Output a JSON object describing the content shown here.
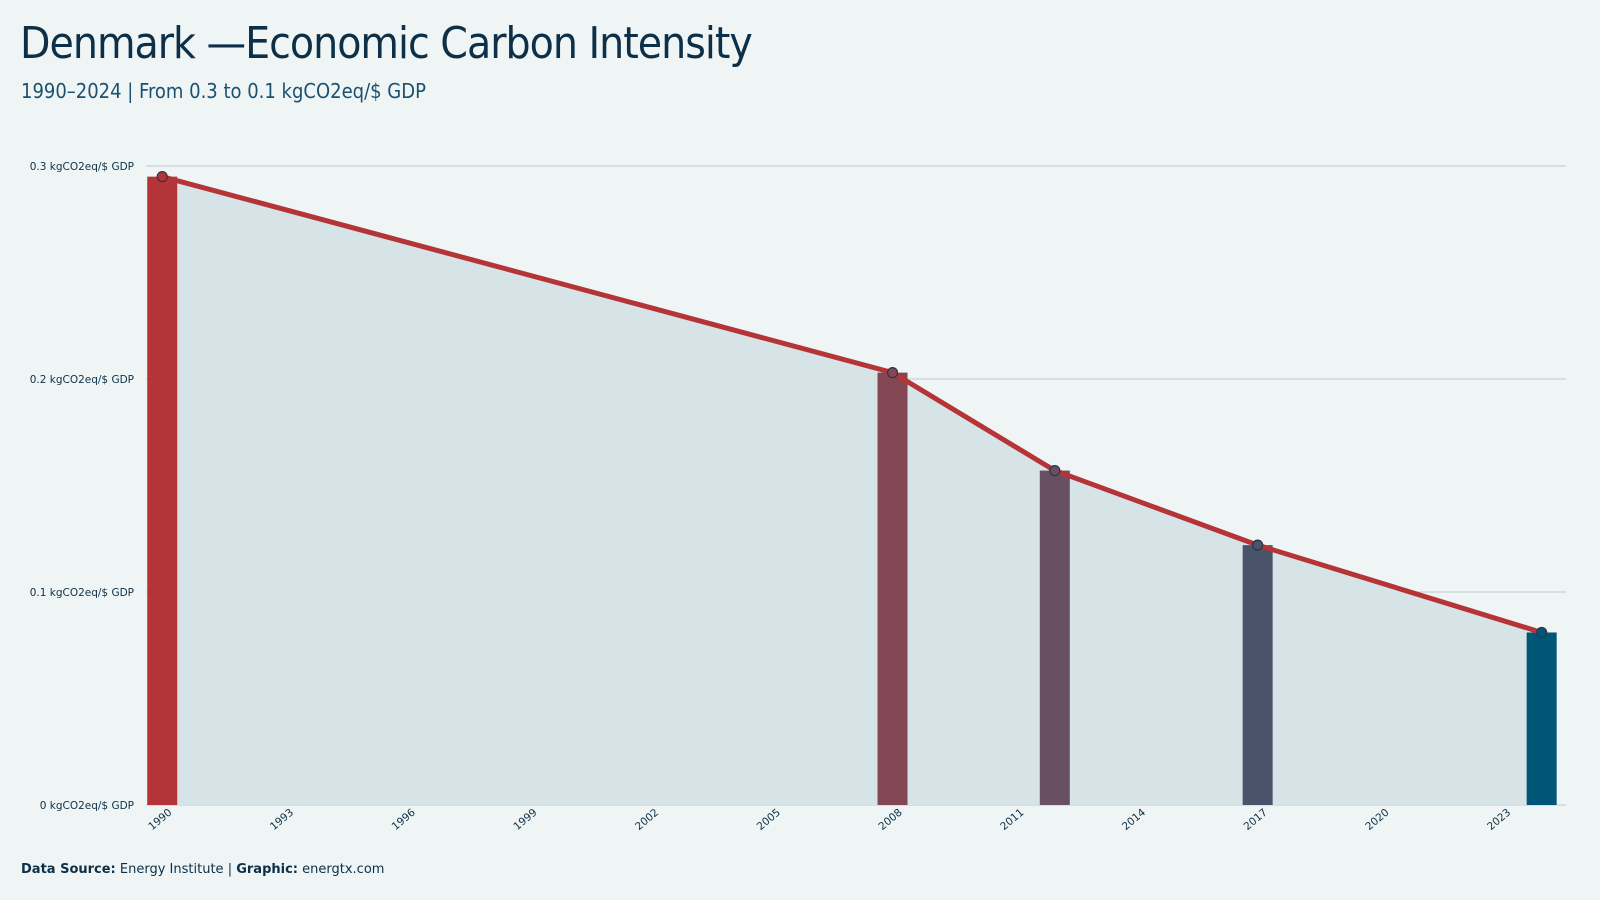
{
  "header": {
    "title": "Denmark —Economic Carbon Intensity",
    "subtitle": "1990–2024 | From 0.3 to 0.1 kgCO2eq/$ GDP"
  },
  "footer": {
    "source_label": "Data Source:",
    "source_value": "Energy Institute",
    "separator": "|",
    "graphic_label": "Graphic:",
    "graphic_value": "energtx.com"
  },
  "colors": {
    "background": "#eff5f5",
    "area_fill": "#d7e4e7",
    "line": "#b53437",
    "grid": "#c7d3d8",
    "text": "#0d3048"
  },
  "chart_data": {
    "type": "line",
    "title": "Denmark —Economic Carbon Intensity",
    "subtitle": "1990–2024 | From 0.3 to 0.1 kgCO2eq/$ GDP",
    "xlabel": "",
    "ylabel": "",
    "xlim": [
      1990,
      2024
    ],
    "ylim": [
      0,
      0.3
    ],
    "y_ticks": [
      0,
      0.1,
      0.2,
      0.3
    ],
    "y_tick_labels": [
      "0 kgCO2eq/$ GDP",
      "0.1 kgCO2eq/$ GDP",
      "0.2 kgCO2eq/$ GDP",
      "0.3 kgCO2eq/$ GDP"
    ],
    "x_ticks": [
      1990,
      1993,
      1996,
      1999,
      2002,
      2005,
      2008,
      2011,
      2014,
      2017,
      2020,
      2023
    ],
    "grid": true,
    "legend": "none",
    "series": [
      {
        "x": [
          1990,
          2008,
          2012,
          2017,
          2024
        ],
        "values": [
          0.295,
          0.203,
          0.157,
          0.122,
          0.081
        ]
      }
    ],
    "highlight_bars": [
      {
        "x": 1990,
        "value": 0.295,
        "color": "#b53437"
      },
      {
        "x": 2008,
        "value": 0.203,
        "color": "#824752"
      },
      {
        "x": 2012,
        "value": 0.157,
        "color": "#694f62"
      },
      {
        "x": 2017,
        "value": 0.122,
        "color": "#49546b"
      },
      {
        "x": 2024,
        "value": 0.081,
        "color": "#005677"
      }
    ]
  }
}
